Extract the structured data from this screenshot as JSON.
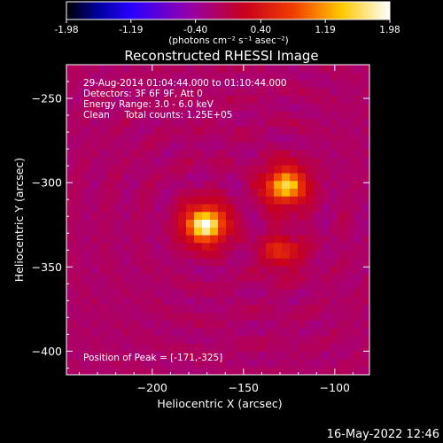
{
  "chart_data": {
    "type": "heatmap",
    "title": "Reconstructed RHESSI Image",
    "xlabel": "Heliocentric X (arcsec)",
    "ylabel": "Heliocentric Y (arcsec)",
    "xlim": [
      -247,
      -81
    ],
    "ylim": [
      -414,
      -230
    ],
    "xticks": [
      -200,
      -150,
      -100
    ],
    "yticks": [
      -250,
      -300,
      -350,
      -400
    ],
    "colorbar": {
      "min": -1.98,
      "max": 1.98,
      "ticks": [
        -1.98,
        -1.19,
        -0.4,
        0.4,
        1.19,
        1.98
      ],
      "tick_labels": [
        "-1.98",
        "-1.19",
        "-0.40",
        "0.40",
        "1.19",
        "1.98"
      ],
      "units": "(photons cm⁻² s⁻¹ asec⁻²)"
    },
    "annotations": [
      "29-Aug-2014 01:04:44.000 to 01:10:44.000",
      "Detectors: 3F 6F 9F, Att 0",
      "Energy Range: 3.0 - 6.0 keV",
      "Clean     Total counts: 1.25E+05"
    ],
    "peak_label": "Position of Peak = [-171,-325]",
    "sources": [
      {
        "x": -171,
        "y": -325,
        "intensity": 1.98
      },
      {
        "x": -127,
        "y": -302,
        "intensity": 1.55
      },
      {
        "x": -129,
        "y": -341,
        "intensity": 0.55
      }
    ],
    "background_level": -0.15
  },
  "footer": {
    "timestamp": "16-May-2022 12:46"
  },
  "colors": {
    "background": "#000000",
    "axes": "#ffffff",
    "colormap": "red-temperature"
  }
}
